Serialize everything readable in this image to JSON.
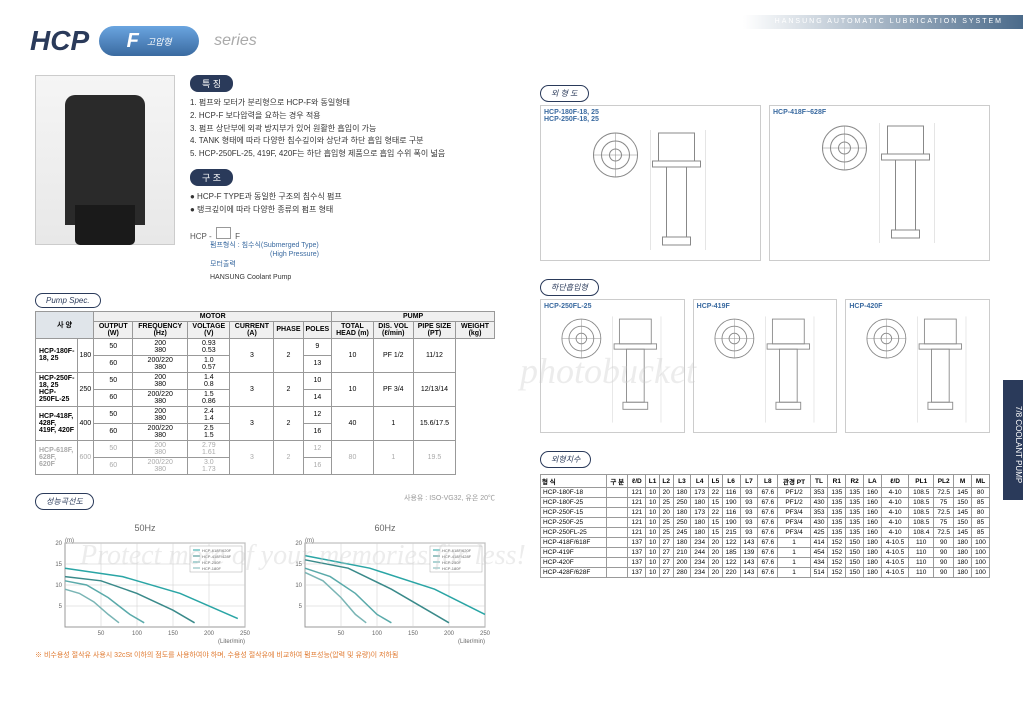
{
  "header": {
    "brand": "HANSUNG AUTOMATIC LUBRICATION SYSTEM"
  },
  "title": {
    "hcp": "HCP",
    "f": "F",
    "f_sub": "고압형",
    "series": "series"
  },
  "page_tab": "7/8  COOLANT PUMP",
  "features": {
    "label": "특 징",
    "items": [
      "1. 펌프와 모터가 분리형으로 HCP-F와 동일형태",
      "2. HCP-F 보다압력을 요하는 경우 적용",
      "3. 펌프 상단부에 외곽 방지부가 있어 원활한 흡입이 가능",
      "4. TANK 형태에 따라 다양한 침수깊이와 상단과 하단 흡입 형태로 구분",
      "5. HCP-250FL-25, 419F, 420F는 하단 흡입형 제품으로 흡입 수위 폭이 넓음"
    ]
  },
  "structure": {
    "label": "구 조",
    "items": [
      "● HCP-F TYPE과 동일한 구조의 침수식 펌프",
      "● 탱크깊이에 따라 다양한 종류의 펌프 형태"
    ]
  },
  "legend": {
    "prefix": "HCP -",
    "suffix": "F",
    "line1": "펌프형식 : 침수식(Submerged Type)",
    "line1b": "(High Pressure)",
    "line2": "모터출력",
    "line3": "HANSUNG  Coolant Pump"
  },
  "spec_badge": "Pump Spec.",
  "spec_table": {
    "group_headers": [
      "사 양",
      "MOTOR",
      "PUMP"
    ],
    "headers": [
      "형 식",
      "OUTPUT (W)",
      "FREQUENCY (Hz)",
      "VOLTAGE (V)",
      "CURRENT (A)",
      "PHASE",
      "POLES",
      "TOTAL HEAD (m)",
      "DIS. VOL (ℓ/min)",
      "PIPE SIZE (PT)",
      "WEIGHT (kg)"
    ],
    "rows": [
      {
        "model": "HCP-180F-18, 25",
        "out": "180",
        "rows2": [
          [
            "50",
            "200\n380",
            "0.93\n0.53",
            "3",
            "2",
            "9",
            "10",
            "PF 1/2",
            "11/12"
          ],
          [
            "60",
            "200/220\n380",
            "1.0\n0.57",
            "",
            "",
            "13",
            "",
            "",
            ""
          ]
        ]
      },
      {
        "model": "HCP-250F-18, 25\nHCP-250FL-25",
        "out": "250",
        "rows2": [
          [
            "50",
            "200\n380",
            "1.4\n0.8",
            "3",
            "2",
            "10",
            "10",
            "PF 3/4",
            "12/13/14"
          ],
          [
            "60",
            "200/220\n380",
            "1.5\n0.86",
            "",
            "",
            "14",
            "",
            "",
            ""
          ]
        ]
      },
      {
        "model": "HCP-418F, 428F,\n419F, 420F",
        "out": "400",
        "rows2": [
          [
            "50",
            "200\n380",
            "2.4\n1.4",
            "3",
            "2",
            "12",
            "40",
            "1",
            "15.6/17.5"
          ],
          [
            "60",
            "200/220\n380",
            "2.5\n1.5",
            "",
            "",
            "16",
            "",
            "",
            ""
          ]
        ]
      },
      {
        "model": "HCP-618F, 628F,\n620F",
        "out": "600",
        "disabled": true,
        "rows2": [
          [
            "50",
            "200\n380",
            "2.79\n1.61",
            "3",
            "2",
            "12",
            "80",
            "1",
            "19.5"
          ],
          [
            "60",
            "200/220\n380",
            "3.0\n1.73",
            "",
            "",
            "16",
            "",
            "",
            ""
          ]
        ]
      }
    ]
  },
  "perf_badge": "성능곡선도",
  "perf_caption": "사용유 : ISO-VG32, 유온 20℃",
  "perf_footnote": "※ 비수용성 절삭유 사용시 32cSt 이하의 점도를 사용하여야 하며, 수용성 절삭유에 비교하여 펌프성능(압력 및 유량)이 저하됨",
  "charts": [
    {
      "title": "50Hz",
      "ylabel": "(m)",
      "xlabel": "(Liter/min)",
      "ylim": [
        0,
        20
      ],
      "xlim": [
        0,
        250
      ],
      "yticks": [
        5,
        10,
        15,
        20
      ],
      "xticks": [
        50,
        100,
        150,
        200,
        250
      ],
      "series": [
        {
          "label": "HCP-618F/620F",
          "color": "#2aa5a5",
          "pts": [
            [
              0,
              14
            ],
            [
              80,
              12
            ],
            [
              160,
              8
            ],
            [
              240,
              2
            ]
          ]
        },
        {
          "label": "HCP-418F/428F",
          "color": "#3a8a8a",
          "pts": [
            [
              0,
              12
            ],
            [
              50,
              11
            ],
            [
              100,
              8
            ],
            [
              150,
              4
            ],
            [
              180,
              1
            ]
          ]
        },
        {
          "label": "HCP-250F",
          "color": "#5aaaaa",
          "pts": [
            [
              0,
              11
            ],
            [
              30,
              10
            ],
            [
              60,
              7
            ],
            [
              90,
              3
            ],
            [
              110,
              1
            ]
          ]
        },
        {
          "label": "HCP-180F",
          "color": "#7ab5b5",
          "pts": [
            [
              0,
              9
            ],
            [
              20,
              8
            ],
            [
              40,
              6
            ],
            [
              60,
              3
            ],
            [
              75,
              1
            ]
          ]
        }
      ]
    },
    {
      "title": "60Hz",
      "ylabel": "(m)",
      "xlabel": "(Liter/min)",
      "ylim": [
        0,
        20
      ],
      "xlim": [
        0,
        250
      ],
      "yticks": [
        5,
        10,
        15,
        20
      ],
      "xticks": [
        50,
        100,
        150,
        200,
        250
      ],
      "series": [
        {
          "label": "HCP-618F/620F",
          "color": "#2aa5a5",
          "pts": [
            [
              0,
              17
            ],
            [
              90,
              14
            ],
            [
              180,
              9
            ],
            [
              250,
              3
            ]
          ]
        },
        {
          "label": "HCP-418F/428F",
          "color": "#3a8a8a",
          "pts": [
            [
              0,
              16
            ],
            [
              60,
              14
            ],
            [
              120,
              9
            ],
            [
              170,
              4
            ],
            [
              200,
              1
            ]
          ]
        },
        {
          "label": "HCP-250F",
          "color": "#5aaaaa",
          "pts": [
            [
              0,
              14
            ],
            [
              35,
              12
            ],
            [
              70,
              8
            ],
            [
              100,
              3
            ],
            [
              120,
              1
            ]
          ]
        },
        {
          "label": "HCP-180F",
          "color": "#7ab5b5",
          "pts": [
            [
              0,
              13
            ],
            [
              25,
              11
            ],
            [
              50,
              7
            ],
            [
              70,
              3
            ],
            [
              85,
              1
            ]
          ]
        }
      ]
    }
  ],
  "outline_badge": "외 형 도",
  "outline_diagrams": [
    {
      "label": "HCP-180F-18, 25\nHCP-250F-18, 25"
    },
    {
      "label": "HCP-418F~628F"
    }
  ],
  "bottom_badge": "하단흡입형",
  "bottom_diagrams": [
    {
      "label": "HCP-250FL-25"
    },
    {
      "label": "HCP-419F"
    },
    {
      "label": "HCP-420F"
    }
  ],
  "dim_badge": "외형치수",
  "dim_table": {
    "headers": [
      "형 식",
      "구 분",
      "ℓ/D",
      "L1",
      "L2",
      "L3",
      "L4",
      "L5",
      "L6",
      "L7",
      "L8",
      "관경 PT",
      "TL",
      "R1",
      "R2",
      "LA",
      "ℓ/D",
      "PL1",
      "PL2",
      "M",
      "ML"
    ],
    "rows": [
      [
        "HCP-180F-18",
        "",
        "121",
        "10",
        "20",
        "180",
        "173",
        "22",
        "116",
        "93",
        "67.6",
        "PF1/2",
        "353",
        "135",
        "135",
        "160",
        "4-10",
        "108.5",
        "72.5",
        "145",
        "80"
      ],
      [
        "HCP-180F-25",
        "",
        "121",
        "10",
        "25",
        "250",
        "180",
        "15",
        "190",
        "93",
        "67.6",
        "PF1/2",
        "430",
        "135",
        "135",
        "160",
        "4-10",
        "108.5",
        "75",
        "150",
        "85"
      ],
      [
        "HCP-250F-15",
        "",
        "121",
        "10",
        "20",
        "180",
        "173",
        "22",
        "116",
        "93",
        "67.6",
        "PF3/4",
        "353",
        "135",
        "135",
        "160",
        "4-10",
        "108.5",
        "72.5",
        "145",
        "80"
      ],
      [
        "HCP-250F-25",
        "",
        "121",
        "10",
        "25",
        "250",
        "180",
        "15",
        "190",
        "93",
        "67.6",
        "PF3/4",
        "430",
        "135",
        "135",
        "160",
        "4-10",
        "108.5",
        "75",
        "150",
        "85"
      ],
      [
        "HCP-250FL-25",
        "",
        "121",
        "10",
        "25",
        "245",
        "180",
        "15",
        "215",
        "93",
        "67.6",
        "PF3/4",
        "425",
        "135",
        "135",
        "160",
        "4-10",
        "108.4",
        "72.5",
        "145",
        "85"
      ],
      [
        "HCP-418F/618F",
        "",
        "137",
        "10",
        "27",
        "180",
        "234",
        "20",
        "122",
        "143",
        "67.6",
        "1",
        "414",
        "152",
        "150",
        "180",
        "4-10.5",
        "110",
        "90",
        "180",
        "100"
      ],
      [
        "HCP-419F",
        "",
        "137",
        "10",
        "27",
        "210",
        "244",
        "20",
        "185",
        "139",
        "67.6",
        "1",
        "454",
        "152",
        "150",
        "180",
        "4-10.5",
        "110",
        "90",
        "180",
        "100"
      ],
      [
        "HCP-420F",
        "",
        "137",
        "10",
        "27",
        "200",
        "234",
        "20",
        "122",
        "143",
        "67.6",
        "1",
        "434",
        "152",
        "150",
        "180",
        "4-10.5",
        "110",
        "90",
        "180",
        "100"
      ],
      [
        "HCP-428F/628F",
        "",
        "137",
        "10",
        "27",
        "280",
        "234",
        "20",
        "220",
        "143",
        "67.6",
        "1",
        "514",
        "152",
        "150",
        "180",
        "4-10.5",
        "110",
        "90",
        "180",
        "100"
      ]
    ]
  },
  "watermarks": {
    "wm1": "photobucket",
    "wm2": "Protect more of your memories for less!"
  }
}
